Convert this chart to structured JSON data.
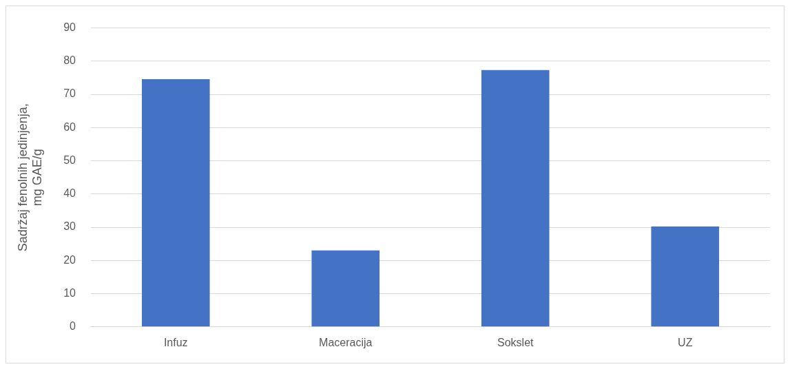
{
  "chart_data": {
    "type": "bar",
    "ylabel": "Sadržaj fenolnih jedinjenja, mg GAE/g",
    "categories": [
      "Infuz",
      "Maceracija",
      "Sokslet",
      "UZ"
    ],
    "values": [
      74.6,
      23.0,
      77.3,
      30.2
    ],
    "color": "#4472c4",
    "ylim": [
      0,
      90
    ],
    "yticks": [
      0,
      10,
      20,
      30,
      40,
      50,
      60,
      70,
      80,
      90
    ],
    "grid": "y",
    "legend": false
  }
}
